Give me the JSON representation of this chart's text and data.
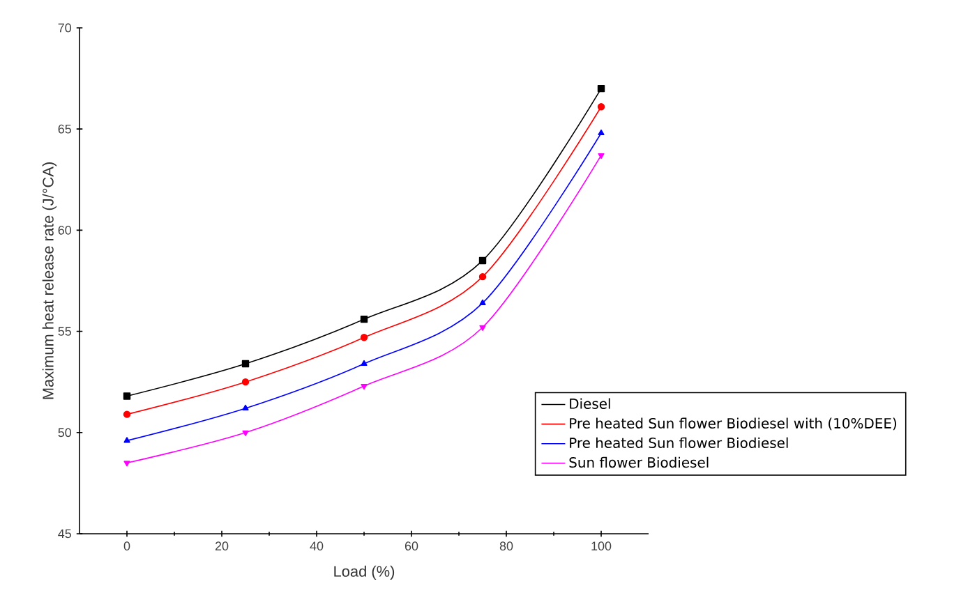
{
  "chart_data": {
    "type": "line",
    "xlabel": "Load (%)",
    "ylabel": "Maximum heat release rate (J/°CA)",
    "x": [
      0,
      25,
      50,
      75,
      100
    ],
    "series": [
      {
        "name": "Diesel",
        "color": "#000000",
        "marker": "square",
        "values": [
          51.8,
          53.4,
          55.6,
          58.5,
          67.0
        ]
      },
      {
        "name": "Pre heated Sun flower Biodiesel with (10%DEE)",
        "color": "#ff0000",
        "marker": "circle",
        "values": [
          50.9,
          52.5,
          54.7,
          57.7,
          66.1
        ]
      },
      {
        "name": "Pre heated Sun flower Biodiesel",
        "color": "#0000ff",
        "marker": "triangle",
        "values": [
          49.6,
          51.2,
          53.4,
          56.4,
          64.8
        ]
      },
      {
        "name": "Sun flower Biodiesel",
        "color": "#ff00ff",
        "marker": "triangle-down",
        "values": [
          48.5,
          50.0,
          52.3,
          55.2,
          63.7
        ]
      }
    ],
    "xlim": [
      -10,
      110
    ],
    "xticks": [
      0,
      20,
      40,
      60,
      80,
      100
    ],
    "ylim": [
      45,
      70
    ],
    "yticks": [
      45,
      50,
      55,
      60,
      65,
      70
    ],
    "grid": false,
    "legend": "right",
    "line_style": "solid"
  }
}
